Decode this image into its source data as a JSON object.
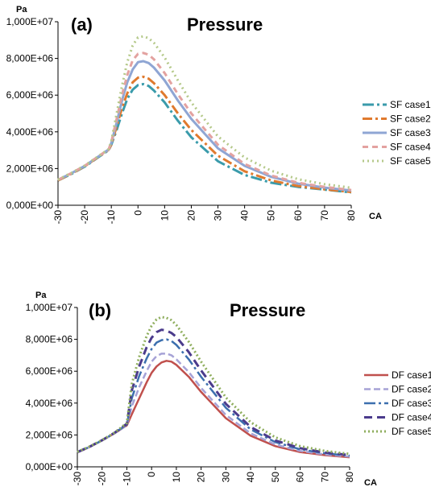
{
  "chart_data": [
    {
      "type": "line",
      "panel_label": "(a)",
      "title": "Pressure",
      "ylabel": "Pa",
      "xlabel": "CA",
      "xlim": [
        -30,
        80
      ],
      "ylim": [
        0,
        10000000
      ],
      "x_ticks": [
        "-30",
        "-20",
        "-10",
        "0",
        "10",
        "20",
        "30",
        "40",
        "50",
        "60",
        "70",
        "80"
      ],
      "y_ticks": [
        "0,000E+00",
        "2,000E+06",
        "4,000E+06",
        "6,000E+06",
        "8,000E+06",
        "1,000E+07"
      ],
      "grid": false,
      "legend_position": "right",
      "x": [
        -30,
        -25,
        -20,
        -15,
        -11,
        -10,
        -8,
        -6,
        -4,
        -2,
        0,
        2,
        4,
        6,
        10,
        15,
        20,
        30,
        40,
        50,
        60,
        70,
        80
      ],
      "series": [
        {
          "name": "SF case1",
          "color": "#3a9bab",
          "dash": "14,4,3,4",
          "width": 3,
          "values": [
            1350000,
            1700000,
            2100000,
            2600000,
            3000000,
            3300000,
            4100000,
            5000000,
            5800000,
            6300000,
            6550000,
            6600000,
            6500000,
            6250000,
            5600000,
            4600000,
            3700000,
            2400000,
            1650000,
            1230000,
            1000000,
            850000,
            700000
          ]
        },
        {
          "name": "SF case2",
          "color": "#e07a2e",
          "dash": "12,4,3,4",
          "width": 3,
          "values": [
            1350000,
            1720000,
            2120000,
            2620000,
            3020000,
            3300000,
            4300000,
            5300000,
            6100000,
            6700000,
            6950000,
            7000000,
            6900000,
            6650000,
            6000000,
            5000000,
            4100000,
            2700000,
            1850000,
            1350000,
            1050000,
            870000,
            720000
          ]
        },
        {
          "name": "SF case3",
          "color": "#8fa6d4",
          "dash": "",
          "width": 3,
          "values": [
            1380000,
            1740000,
            2140000,
            2640000,
            3040000,
            3400000,
            4500000,
            5700000,
            6700000,
            7400000,
            7800000,
            7850000,
            7750000,
            7500000,
            6800000,
            5700000,
            4700000,
            3100000,
            2150000,
            1550000,
            1180000,
            960000,
            800000
          ]
        },
        {
          "name": "SF case4",
          "color": "#e3a2a0",
          "dash": "7,5",
          "width": 3,
          "values": [
            1380000,
            1750000,
            2150000,
            2650000,
            3050000,
            3450000,
            4700000,
            6000000,
            7100000,
            7900000,
            8250000,
            8300000,
            8200000,
            7950000,
            7200000,
            6050000,
            5000000,
            3300000,
            2250000,
            1620000,
            1230000,
            1000000,
            830000
          ]
        },
        {
          "name": "SF case5",
          "color": "#b5c98a",
          "dash": "2,4",
          "width": 3,
          "values": [
            1400000,
            1760000,
            2160000,
            2660000,
            3060000,
            3500000,
            5000000,
            6500000,
            7800000,
            8700000,
            9150000,
            9200000,
            9100000,
            8850000,
            8050000,
            6800000,
            5600000,
            3750000,
            2600000,
            1880000,
            1420000,
            1150000,
            950000
          ]
        }
      ]
    },
    {
      "type": "line",
      "panel_label": "(b)",
      "title": "Pressure",
      "ylabel": "Pa",
      "xlabel": "CA",
      "xlim": [
        -30,
        80
      ],
      "ylim": [
        0,
        10000000
      ],
      "x_ticks": [
        "-30",
        "-20",
        "-10",
        "0",
        "10",
        "20",
        "30",
        "40",
        "50",
        "60",
        "70",
        "80"
      ],
      "y_ticks": [
        "0,000E+00",
        "2,000E+06",
        "4,000E+06",
        "6,000E+06",
        "8,000E+06",
        "1,000E+07"
      ],
      "grid": false,
      "legend_position": "right",
      "x": [
        -30,
        -25,
        -20,
        -15,
        -10,
        -8,
        -5,
        -2,
        0,
        2,
        4,
        6,
        8,
        10,
        15,
        20,
        30,
        40,
        50,
        60,
        70,
        80
      ],
      "series": [
        {
          "name": "DF case1",
          "color": "#c0504d",
          "dash": "",
          "width": 2.5,
          "values": [
            900000,
            1250000,
            1650000,
            2100000,
            2600000,
            3300000,
            4300000,
            5300000,
            5900000,
            6300000,
            6550000,
            6650000,
            6600000,
            6400000,
            5650000,
            4700000,
            3050000,
            1950000,
            1300000,
            930000,
            730000,
            600000
          ]
        },
        {
          "name": "DF case2",
          "color": "#a6a2d6",
          "dash": "8,4",
          "width": 2.5,
          "values": [
            900000,
            1250000,
            1650000,
            2100000,
            2600000,
            3800000,
            5000000,
            6000000,
            6600000,
            6950000,
            7100000,
            7100000,
            7000000,
            6750000,
            5950000,
            4950000,
            3250000,
            2100000,
            1400000,
            1000000,
            780000,
            640000
          ]
        },
        {
          "name": "DF case3",
          "color": "#3c6fae",
          "dash": "14,4,3,4",
          "width": 2.5,
          "values": [
            920000,
            1260000,
            1660000,
            2120000,
            2650000,
            4300000,
            5700000,
            6800000,
            7400000,
            7800000,
            7950000,
            8000000,
            7900000,
            7650000,
            6750000,
            5650000,
            3700000,
            2350000,
            1550000,
            1100000,
            850000,
            700000
          ]
        },
        {
          "name": "DF case4",
          "color": "#4b3b8c",
          "dash": "10,6",
          "width": 3,
          "values": [
            930000,
            1270000,
            1670000,
            2130000,
            2700000,
            4800000,
            6300000,
            7500000,
            8100000,
            8450000,
            8600000,
            8550000,
            8400000,
            8150000,
            7200000,
            6050000,
            3950000,
            2500000,
            1650000,
            1170000,
            900000,
            740000
          ]
        },
        {
          "name": "DF case5",
          "color": "#8fae5e",
          "dash": "2,3",
          "width": 3,
          "values": [
            940000,
            1280000,
            1680000,
            2140000,
            2750000,
            5200000,
            6900000,
            8200000,
            8850000,
            9250000,
            9400000,
            9350000,
            9200000,
            8900000,
            7850000,
            6600000,
            4350000,
            2800000,
            1850000,
            1300000,
            1000000,
            810000
          ]
        }
      ]
    }
  ]
}
